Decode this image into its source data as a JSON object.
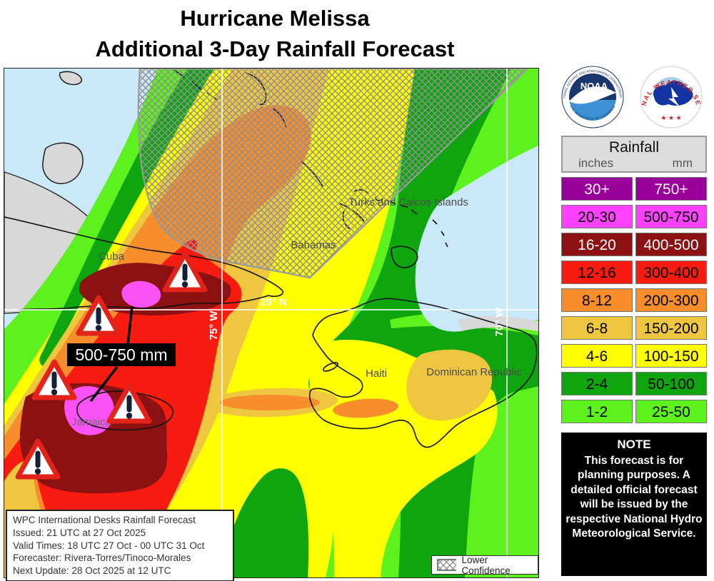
{
  "title": {
    "line1": "Hurricane Melissa",
    "line2": "Additional 3-Day Rainfall Forecast"
  },
  "map": {
    "place_labels": {
      "cuba": "Cuba",
      "bahamas": "Bahamas",
      "turks_caicos": "Turks and Caicos Islands",
      "haiti": "Haiti",
      "dominican_republic": "Dominican Republic",
      "jamaica": "Jamaica"
    },
    "grid_labels": {
      "lon75": "75° W",
      "lon70": "70° W",
      "lat20": "20° N"
    },
    "annotation_label": "500-750 mm",
    "info_box": {
      "lines": [
        "WPC International Desks Rainfall Forecast",
        "Issued: 21 UTC at 27 Oct 2025",
        "Valid Times: 18 UTC 27 Oct - 00 UTC 31 Oct",
        "Forecaster: Rivera-Torres/Tinoco-Morales",
        "Next Update: 28 Oct 2025 at 12 UTC"
      ]
    },
    "lower_confidence": "Lower Confidence"
  },
  "legend": {
    "title": "Rainfall",
    "columns": {
      "inches": "inches",
      "mm": "mm"
    },
    "rows": [
      {
        "inches": "30+",
        "mm": "750+",
        "bg": "#990099",
        "fg": "#ffffff"
      },
      {
        "inches": "20-30",
        "mm": "500-750",
        "bg": "#ff40ff",
        "fg": "#000000"
      },
      {
        "inches": "16-20",
        "mm": "400-500",
        "bg": "#8b1113",
        "fg": "#ffffff"
      },
      {
        "inches": "12-16",
        "mm": "300-400",
        "bg": "#f81b10",
        "fg": "#000000"
      },
      {
        "inches": "8-12",
        "mm": "200-300",
        "bg": "#f78d2b",
        "fg": "#000000"
      },
      {
        "inches": "6-8",
        "mm": "150-200",
        "bg": "#eec63f",
        "fg": "#000000"
      },
      {
        "inches": "4-6",
        "mm": "100-150",
        "bg": "#ffff00",
        "fg": "#000000"
      },
      {
        "inches": "2-4",
        "mm": "50-100",
        "bg": "#0ea50e",
        "fg": "#000000"
      },
      {
        "inches": "1-2",
        "mm": "25-50",
        "bg": "#5df21e",
        "fg": "#000000"
      }
    ]
  },
  "note": {
    "heading": "NOTE",
    "body": "This forecast is for planning purposes. A detailed official forecast will be issued by the respective National Hydro Meteorological Service."
  },
  "logos": {
    "noaa": {
      "ring_top": "NATIONAL OCEANIC AND ATMOSPHERIC ADMINISTRATION",
      "ring_bottom": "U.S. DEPARTMENT OF COMMERCE",
      "center": "NOAA"
    },
    "nws": {
      "ring": "NATIONAL WEATHER SERVICE",
      "stars": "★ ★ ★"
    }
  }
}
